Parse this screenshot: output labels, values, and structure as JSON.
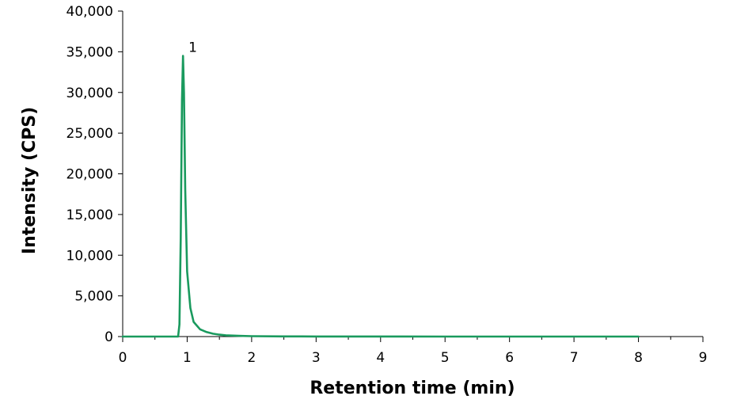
{
  "chart_data": {
    "type": "line",
    "title": "",
    "xlabel": "Retention time (min)",
    "ylabel": "Intensity (CPS)",
    "xlim": [
      0,
      9
    ],
    "ylim": [
      0,
      40000
    ],
    "x_ticks": [
      0,
      1,
      2,
      3,
      4,
      5,
      6,
      7,
      8,
      9
    ],
    "x_tick_labels": [
      "0",
      "1",
      "2",
      "3",
      "4",
      "5",
      "6",
      "7",
      "8",
      "9"
    ],
    "y_ticks": [
      0,
      5000,
      10000,
      15000,
      20000,
      25000,
      30000,
      35000,
      40000
    ],
    "y_tick_labels": [
      "0",
      "5,000",
      "10,000",
      "15,000",
      "20,000",
      "25,000",
      "30,000",
      "35,000",
      "40,000"
    ],
    "grid": false,
    "legend": "none",
    "color": "#1a9a5e",
    "series": [
      {
        "x": [
          0,
          0.86,
          0.88,
          0.9,
          0.92,
          0.935,
          0.95,
          0.97,
          1.0,
          1.05,
          1.1,
          1.2,
          1.3,
          1.4,
          1.5,
          1.6,
          1.8,
          2.0,
          2.5,
          3.0,
          4.0,
          5.0,
          6.0,
          7.0,
          8.0
        ],
        "y": [
          0,
          0,
          1500,
          12000,
          29000,
          34500,
          30000,
          18000,
          8000,
          3500,
          1800,
          900,
          550,
          350,
          230,
          160,
          90,
          50,
          20,
          10,
          5,
          3,
          2,
          1,
          0
        ]
      }
    ],
    "annotations": [
      {
        "text": "1",
        "x": 0.935,
        "y": 34500
      }
    ]
  }
}
